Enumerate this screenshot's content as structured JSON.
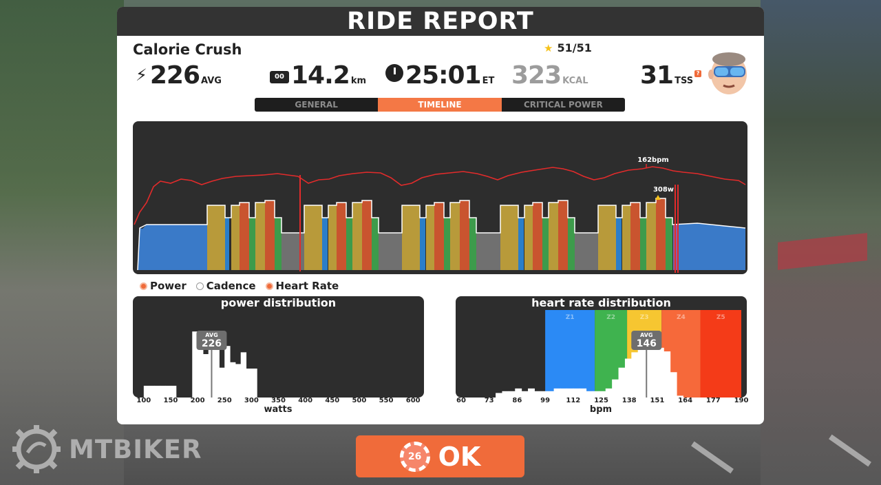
{
  "title": "RIDE REPORT",
  "workout": {
    "name": "Calorie Crush",
    "stars": "51/51"
  },
  "stats": {
    "power": {
      "value": "226",
      "unit": "AVG"
    },
    "distance": {
      "value": "14.2",
      "unit": "km"
    },
    "time": {
      "value": "25:01",
      "unit": "ET"
    },
    "calories": {
      "value": "323",
      "unit": "KCAL"
    },
    "tss": {
      "value": "31",
      "unit": "TSS",
      "help": "?"
    }
  },
  "icons": {
    "odometer_text": "00"
  },
  "tabs": [
    {
      "label": "GENERAL",
      "active": false
    },
    {
      "label": "TIMELINE",
      "active": true
    },
    {
      "label": "CRITICAL POWER",
      "active": false
    }
  ],
  "timeline": {
    "annotations": {
      "max_hr": "162bpm",
      "max_power": "308w"
    }
  },
  "legend": {
    "power": "Power",
    "cadence": "Cadence",
    "heart_rate": "Heart Rate"
  },
  "chart_data": [
    {
      "type": "bar",
      "title": "power distribution",
      "xlabel": "watts",
      "x_ticks": [
        "100",
        "150",
        "200",
        "250",
        "300",
        "350",
        "400",
        "450",
        "500",
        "550",
        "600"
      ],
      "xlim": [
        90,
        610
      ],
      "bins_start": [
        100,
        110,
        120,
        130,
        140,
        150,
        160,
        170,
        180,
        190,
        200,
        210,
        220,
        230,
        240,
        250,
        260,
        270,
        280,
        290,
        300
      ],
      "values": [
        0.13,
        0.13,
        0.13,
        0.13,
        0.13,
        0.13,
        0.0,
        0.0,
        0.0,
        0.73,
        0.73,
        0.48,
        0.58,
        0.6,
        0.33,
        0.57,
        0.39,
        0.37,
        0.5,
        0.32,
        0.32
      ],
      "avg_label": "AVG",
      "avg_value": "226",
      "avg": 226
    },
    {
      "type": "bar",
      "title": "heart rate distribution",
      "xlabel": "bpm",
      "x_ticks": [
        "60",
        "73",
        "86",
        "99",
        "112",
        "125",
        "138",
        "151",
        "164",
        "177",
        "190"
      ],
      "xlim": [
        60,
        190
      ],
      "zones": [
        {
          "label": "Z1",
          "from": 99,
          "to": 122,
          "color": "#2b8af5"
        },
        {
          "label": "Z2",
          "from": 122,
          "to": 137,
          "color": "#3fb34f"
        },
        {
          "label": "Z3",
          "from": 137,
          "to": 153,
          "color": "#f6c631"
        },
        {
          "label": "Z4",
          "from": 153,
          "to": 171,
          "color": "#f6693a"
        },
        {
          "label": "Z5",
          "from": 171,
          "to": 190,
          "color": "#f43b18"
        }
      ],
      "values": [
        [
          76,
          0.05
        ],
        [
          79,
          0.07
        ],
        [
          82,
          0.07
        ],
        [
          85,
          0.1
        ],
        [
          88,
          0.07
        ],
        [
          91,
          0.1
        ],
        [
          94,
          0.07
        ],
        [
          97,
          0.07
        ],
        [
          100,
          0.07
        ],
        [
          103,
          0.1
        ],
        [
          106,
          0.1
        ],
        [
          109,
          0.1
        ],
        [
          112,
          0.1
        ],
        [
          115,
          0.1
        ],
        [
          118,
          0.07
        ],
        [
          121,
          0.07
        ],
        [
          124,
          0.07
        ],
        [
          127,
          0.1
        ],
        [
          130,
          0.2
        ],
        [
          133,
          0.33
        ],
        [
          136,
          0.43
        ],
        [
          139,
          0.5
        ],
        [
          142,
          0.58
        ],
        [
          145,
          0.6
        ],
        [
          148,
          0.6
        ],
        [
          151,
          0.55
        ],
        [
          154,
          0.51
        ],
        [
          157,
          0.28
        ],
        [
          160,
          0.02
        ]
      ],
      "avg_label": "AVG",
      "avg_value": "146",
      "avg": 146
    }
  ],
  "ok_button": {
    "label": "OK",
    "countdown": "26"
  },
  "watermark": "MTBIKER"
}
